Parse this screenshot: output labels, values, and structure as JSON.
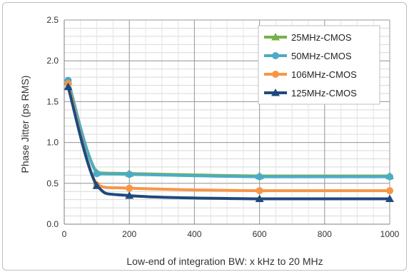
{
  "chart_data": {
    "type": "line",
    "title": "",
    "xlabel": "Low-end of integration BW: x kHz to 20 MHz",
    "ylabel": "Phase Jitter (ps RMS)",
    "xlim": [
      0,
      1000
    ],
    "ylim": [
      0,
      2.5
    ],
    "x_ticks": [
      0,
      200,
      400,
      600,
      800,
      1000
    ],
    "y_ticks": [
      0.0,
      0.5,
      1.0,
      1.5,
      2.0,
      2.5
    ],
    "y_tick_labels": [
      "0.0",
      "0.5",
      "1.0",
      "1.5",
      "2.0",
      "2.5"
    ],
    "x_minor_step": 50,
    "y_minor_step": 0.1,
    "grid": true,
    "legend_position": "top-right",
    "series": [
      {
        "name": "25MHz-CMOS",
        "color": "#77b14a",
        "marker": "triangle",
        "x": [
          12,
          100,
          200,
          600,
          1000
        ],
        "y": [
          1.75,
          0.63,
          0.62,
          0.59,
          0.59
        ]
      },
      {
        "name": "50MHz-CMOS",
        "color": "#4bacc6",
        "marker": "circle",
        "x": [
          12,
          100,
          200,
          600,
          1000
        ],
        "y": [
          1.76,
          0.62,
          0.61,
          0.58,
          0.58
        ]
      },
      {
        "name": "106MHz-CMOS",
        "color": "#f79646",
        "marker": "circle",
        "x": [
          12,
          100,
          200,
          600,
          1000
        ],
        "y": [
          1.72,
          0.48,
          0.44,
          0.41,
          0.41
        ]
      },
      {
        "name": "125MHz-CMOS",
        "color": "#1f497d",
        "marker": "triangle",
        "x": [
          12,
          100,
          200,
          600,
          1000
        ],
        "y": [
          1.68,
          0.47,
          0.35,
          0.31,
          0.31
        ]
      }
    ]
  }
}
